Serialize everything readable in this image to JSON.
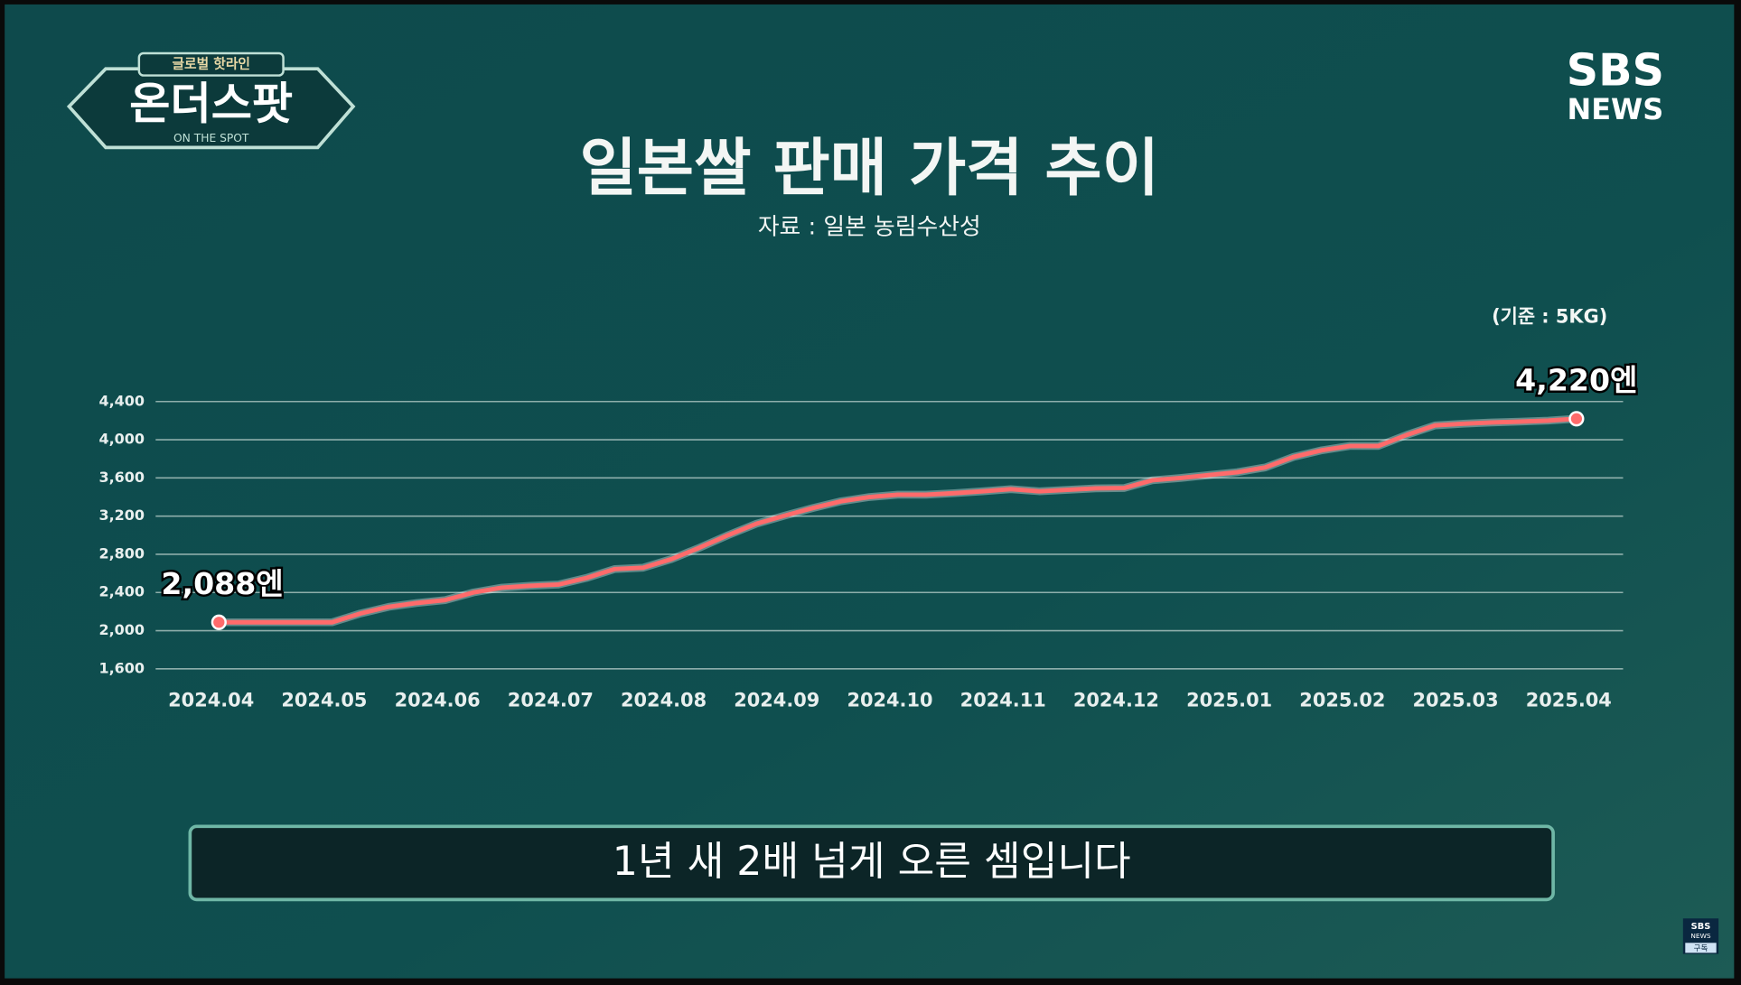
{
  "logo": {
    "top": "글로벌 핫라인",
    "name": "온더스팟",
    "sub": "ON THE SPOT"
  },
  "brand": {
    "line1": "SBS",
    "line2": "NEWS"
  },
  "subscribe": {
    "line1": "SBS",
    "line2": "NEWS",
    "button": "구독"
  },
  "caption": "1년 새 2배 넘게 오른 셈입니다",
  "chart_data": {
    "type": "line",
    "title": "일본쌀 판매 가격 추이",
    "subtitle": "자료 : 일본 농림수산성",
    "unit_note": "(기준 : 5KG)",
    "categories": [
      "2024.04",
      null,
      null,
      null,
      "2024.05",
      null,
      null,
      null,
      "2024.06",
      null,
      null,
      null,
      "2024.07",
      null,
      null,
      null,
      "2024.08",
      null,
      null,
      null,
      "2024.09",
      null,
      null,
      null,
      "2024.10",
      null,
      null,
      null,
      "2024.11",
      null,
      null,
      null,
      "2024.12",
      null,
      null,
      null,
      "2025.01",
      null,
      null,
      null,
      "2025.02",
      null,
      null,
      null,
      "2025.03",
      null,
      null,
      null,
      "2025.04"
    ],
    "series": [
      {
        "name": "판매 가격",
        "color": "#ff6b6b",
        "values": [
          2088,
          2088,
          2088,
          2088,
          2088,
          2180,
          2250,
          2290,
          2320,
          2400,
          2450,
          2470,
          2483,
          2553,
          2646,
          2660,
          2750,
          2870,
          3000,
          3120,
          3204,
          3285,
          3355,
          3400,
          3424,
          3424,
          3440,
          3460,
          3482,
          3460,
          3475,
          3490,
          3494,
          3575,
          3600,
          3630,
          3660,
          3710,
          3820,
          3890,
          3935,
          3935,
          4050,
          4150,
          4168,
          4180,
          4190,
          4200,
          4220
        ],
        "value_labels": [
          "2,088엔",
          null,
          null,
          null,
          null,
          null,
          null,
          null,
          null,
          null,
          null,
          null,
          null,
          null,
          null,
          null,
          null,
          null,
          null,
          null,
          null,
          null,
          null,
          null,
          null,
          null,
          null,
          null,
          null,
          null,
          null,
          null,
          null,
          null,
          null,
          null,
          null,
          null,
          null,
          null,
          null,
          null,
          null,
          null,
          null,
          null,
          null,
          null,
          "4,220엔"
        ]
      }
    ],
    "ylim": [
      1600,
      4400
    ],
    "yticks": [
      {
        "value": 1600,
        "label": "1,600"
      },
      {
        "value": 2000,
        "label": "2,000"
      },
      {
        "value": 2400,
        "label": "2,400"
      },
      {
        "value": 2800,
        "label": "2,800"
      },
      {
        "value": 3200,
        "label": "3,200"
      },
      {
        "value": 3600,
        "label": "3,600"
      },
      {
        "value": 4000,
        "label": "4,000"
      },
      {
        "value": 4400,
        "label": "4,400"
      }
    ],
    "grid": true
  }
}
